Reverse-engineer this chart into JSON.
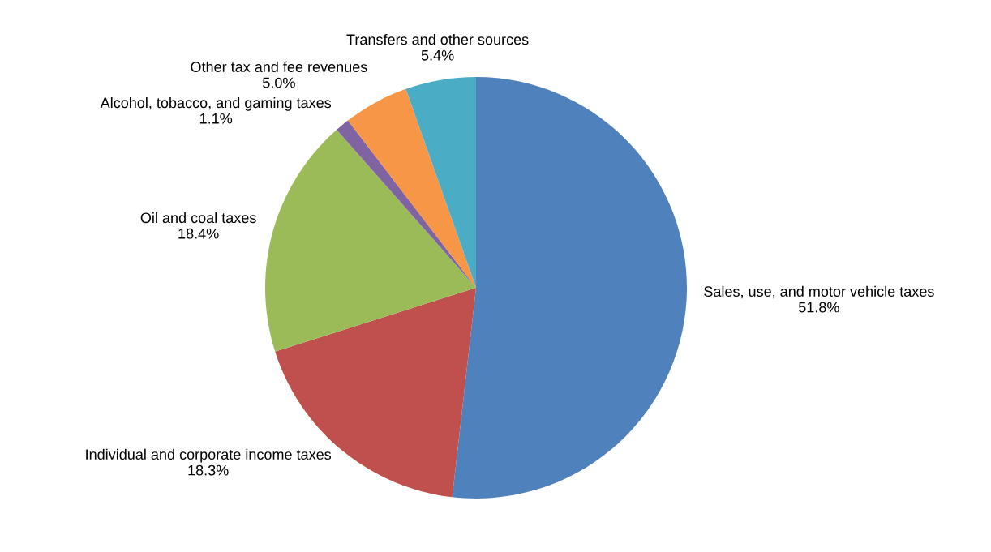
{
  "chart_data": {
    "type": "pie",
    "categories": [
      "Sales, use, and motor vehicle taxes",
      "Individual and corporate income taxes",
      "Oil and coal taxes",
      "Alcohol, tobacco, and gaming taxes",
      "Other tax and fee revenues",
      "Transfers and other sources"
    ],
    "values": [
      51.8,
      18.3,
      18.4,
      1.1,
      5.0,
      5.4
    ],
    "colors": [
      "#4f81bd",
      "#c0504d",
      "#9bbb59",
      "#8064a2",
      "#f79646",
      "#4bacc6"
    ],
    "value_labels": [
      "51.8%",
      "18.3%",
      "18.4%",
      "1.1%",
      "5.0%",
      "5.4%"
    ]
  }
}
